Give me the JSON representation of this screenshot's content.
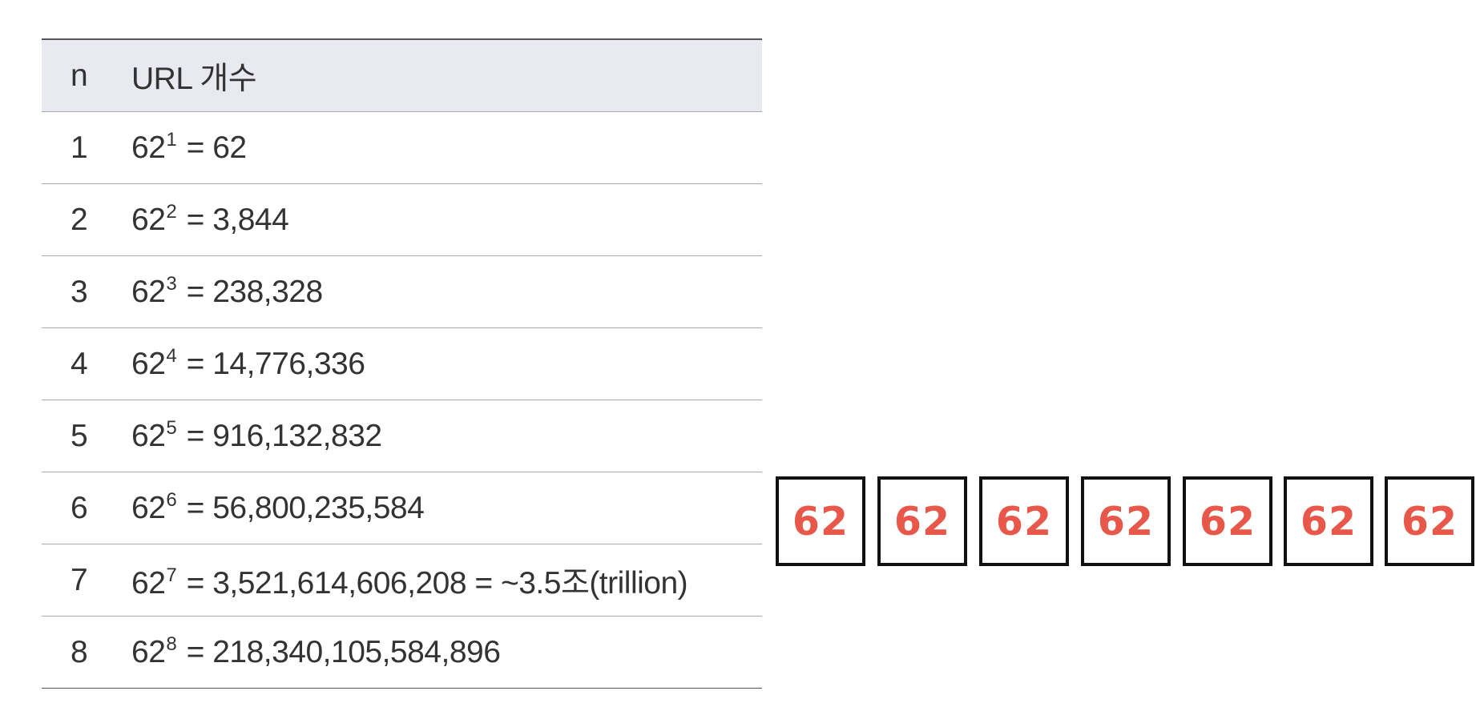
{
  "table": {
    "headers": {
      "n": "n",
      "count": "URL 개수"
    },
    "rows": [
      {
        "n": "1",
        "base": "62",
        "exp": "1",
        "result": " = 62"
      },
      {
        "n": "2",
        "base": "62",
        "exp": "2",
        "result": " = 3,844"
      },
      {
        "n": "3",
        "base": "62",
        "exp": "3",
        "result": " = 238,328"
      },
      {
        "n": "4",
        "base": "62",
        "exp": "4",
        "result": " = 14,776,336"
      },
      {
        "n": "5",
        "base": "62",
        "exp": "5",
        "result": " = 916,132,832"
      },
      {
        "n": "6",
        "base": "62",
        "exp": "6",
        "result": " = 56,800,235,584"
      },
      {
        "n": "7",
        "base": "62",
        "exp": "7",
        "result": " = 3,521,614,606,208 = ~3.5조(trillion)"
      },
      {
        "n": "8",
        "base": "62",
        "exp": "8",
        "result": " = 218,340,105,584,896"
      }
    ]
  },
  "boxes": {
    "color": "#e8584a",
    "items": [
      "62",
      "62",
      "62",
      "62",
      "62",
      "62",
      "62"
    ]
  }
}
